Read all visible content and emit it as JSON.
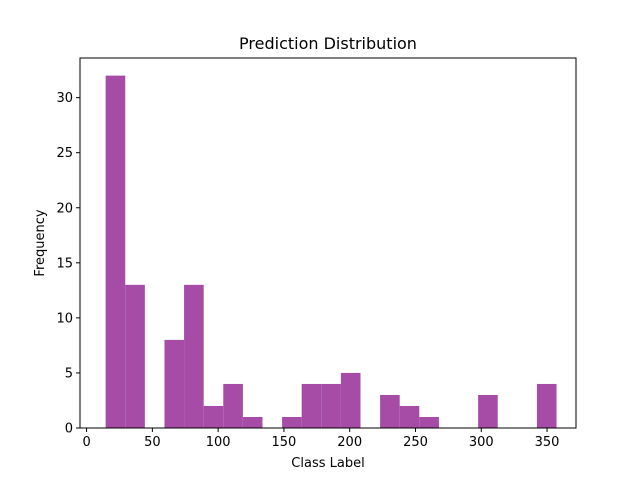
{
  "chart_data": {
    "type": "bar",
    "title": "Prediction Distribution",
    "xlabel": "Class Label",
    "ylabel": "Frequency",
    "xlim": [
      -5,
      372
    ],
    "ylim": [
      0,
      33.6
    ],
    "xticks": [
      0,
      50,
      100,
      150,
      200,
      250,
      300,
      350
    ],
    "yticks": [
      0,
      5,
      10,
      15,
      20,
      25,
      30
    ],
    "bin_edges": [
      14.5,
      29.4,
      44.3,
      59.2,
      74.1,
      89,
      103.9,
      118.8,
      133.7,
      148.6,
      163.5,
      178.4,
      193.3,
      208.2,
      223.1,
      238,
      252.9,
      267.8,
      282.7,
      297.6,
      312.5,
      327.4,
      342.3,
      357.2
    ],
    "counts": [
      32,
      13,
      0,
      8,
      13,
      2,
      4,
      1,
      0,
      1,
      4,
      4,
      5,
      0,
      3,
      2,
      1,
      0,
      0,
      3,
      0,
      0,
      4
    ],
    "bar_color": "#a64ca6",
    "grid": false
  }
}
